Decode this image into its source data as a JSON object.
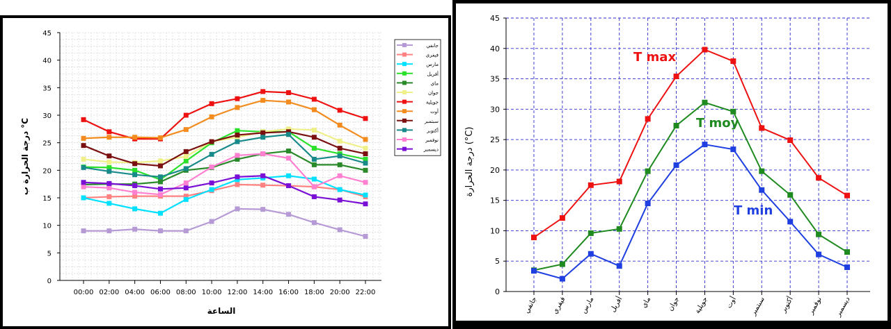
{
  "chart_data": [
    {
      "type": "line",
      "xlabel": "الساعة",
      "ylabel": "درجة الحرارة ب °C",
      "ylim": [
        0,
        45
      ],
      "yticks": [
        0,
        5,
        10,
        15,
        20,
        25,
        30,
        35,
        40,
        45
      ],
      "grid": true,
      "legend_position": "right",
      "categories": [
        "00:00",
        "02:00",
        "04:00",
        "06:00",
        "08:00",
        "10:00",
        "12:00",
        "14:00",
        "16:00",
        "18:00",
        "20:00",
        "22:00"
      ],
      "series": [
        {
          "name": "جانفي",
          "color": "#b59ad6",
          "values": [
            9,
            9,
            9.3,
            9,
            9,
            10.7,
            13,
            12.9,
            12,
            10.5,
            9.2,
            8
          ]
        },
        {
          "name": "فيفري",
          "color": "#ff8080",
          "values": [
            15,
            15.2,
            15.3,
            15.3,
            15.3,
            16.3,
            17.4,
            17.3,
            17.2,
            17,
            16.5,
            15.2
          ]
        },
        {
          "name": "مارس",
          "color": "#00e0ff",
          "values": [
            15,
            14,
            13,
            12.2,
            14.7,
            16.5,
            18.3,
            18.6,
            19,
            18.4,
            16.5,
            15.5
          ]
        },
        {
          "name": "أفريل",
          "color": "#2ae02a",
          "values": [
            20.6,
            20.5,
            20,
            18.3,
            21.7,
            25,
            27.2,
            27,
            27,
            24,
            23,
            22
          ]
        },
        {
          "name": "ماي",
          "color": "#2a8a2a",
          "values": [
            17.4,
            17.5,
            17.5,
            17.9,
            20,
            20.5,
            22,
            23,
            23.5,
            21,
            21,
            20
          ]
        },
        {
          "name": "جوان",
          "color": "#f0f08a",
          "values": [
            22,
            21.5,
            21.4,
            21.7,
            22.5,
            25.2,
            26,
            27,
            27.5,
            27.3,
            25.3,
            24
          ]
        },
        {
          "name": "جويلية",
          "color": "#ee1111",
          "values": [
            29.2,
            27,
            25.7,
            25.7,
            30,
            32.1,
            33,
            34.3,
            34.1,
            32.9,
            30.9,
            29.4
          ]
        },
        {
          "name": "أوت",
          "color": "#f28c1e",
          "values": [
            25.8,
            26,
            26,
            25.9,
            27.4,
            29.7,
            31.4,
            32.7,
            32.4,
            31,
            28.2,
            25.6
          ]
        },
        {
          "name": "سبتمبر",
          "color": "#7a1010",
          "values": [
            24.5,
            22.6,
            21.2,
            20.8,
            23.4,
            25.2,
            26.4,
            26.8,
            27,
            26,
            24,
            23
          ]
        },
        {
          "name": "أكتوبر",
          "color": "#198a8a",
          "values": [
            20.5,
            19.8,
            19.2,
            18.8,
            20.3,
            22.9,
            25.2,
            26,
            26.5,
            22,
            22.6,
            21.3
          ]
        },
        {
          "name": "نوفمبر",
          "color": "#ff80d0",
          "values": [
            17,
            16.8,
            16,
            15.6,
            17.7,
            20.6,
            22.7,
            23,
            22.2,
            17,
            19,
            17.8
          ]
        },
        {
          "name": "ديسمبر",
          "color": "#7a10d6",
          "values": [
            17.8,
            17.6,
            17.2,
            16.6,
            16.8,
            17.7,
            18.8,
            19,
            17.2,
            15.2,
            14.6,
            13.9
          ]
        }
      ]
    },
    {
      "type": "line",
      "xlabel": "",
      "ylabel": "درجة الحرارة (°C)",
      "ylim": [
        0,
        45
      ],
      "yticks": [
        0,
        5,
        10,
        15,
        20,
        25,
        30,
        35,
        40,
        45
      ],
      "grid": true,
      "categories": [
        "جانفي",
        "فيفري",
        "مارس",
        "أفريل",
        "ماي",
        "جوان",
        "جويلية",
        "أوت",
        "سبتمبر",
        "أكتوبر",
        "نوفمبر",
        "ديسمبر"
      ],
      "annotations": [
        "T max",
        "T moy",
        "T min"
      ],
      "series": [
        {
          "name": "T max",
          "color": "#ee1111",
          "values": [
            8.9,
            12.1,
            17.5,
            18.1,
            28.4,
            35.4,
            39.8,
            37.9,
            26.9,
            24.9,
            18.7,
            15.8
          ]
        },
        {
          "name": "T moy",
          "color": "#1f8a1f",
          "values": [
            3.5,
            4.5,
            9.6,
            10.3,
            19.8,
            27.3,
            31.1,
            29.6,
            19.8,
            15.9,
            9.4,
            6.5
          ]
        },
        {
          "name": "T min",
          "color": "#1f3fe0",
          "values": [
            3.4,
            2.1,
            6.2,
            4.2,
            14.5,
            20.8,
            24.2,
            23.4,
            16.7,
            11.5,
            6.1,
            4
          ]
        }
      ]
    }
  ]
}
